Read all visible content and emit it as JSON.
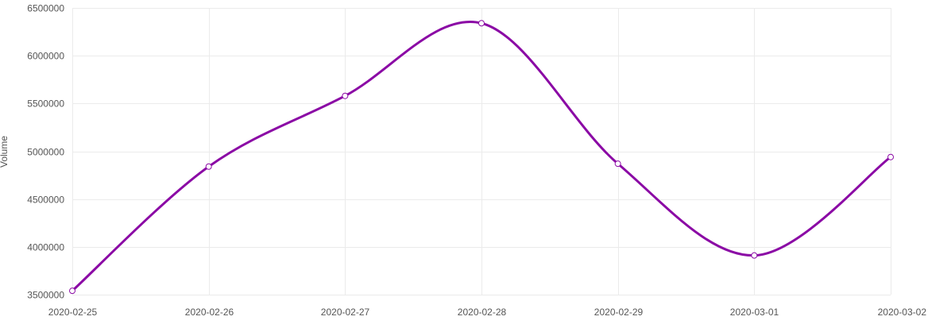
{
  "chart_data": {
    "type": "line",
    "title": "",
    "xlabel": "",
    "ylabel": "Volume",
    "x": [
      "2020-02-25",
      "2020-02-26",
      "2020-02-27",
      "2020-02-28",
      "2020-02-29",
      "2020-03-01",
      "2020-03-02"
    ],
    "series": [
      {
        "values": [
          3540000,
          4840000,
          5580000,
          6340000,
          4870000,
          3910000,
          4940000
        ]
      }
    ],
    "ylim": [
      3500000,
      6500000
    ],
    "yticks": [
      "3500000",
      "4000000",
      "4500000",
      "5000000",
      "5500000",
      "6000000",
      "6500000"
    ],
    "grid": true,
    "smooth": true,
    "colors": {
      "line": "#8b0aa5",
      "marker_fill": "#ffffff",
      "grid": "#ebebeb",
      "text": "#555555"
    }
  }
}
